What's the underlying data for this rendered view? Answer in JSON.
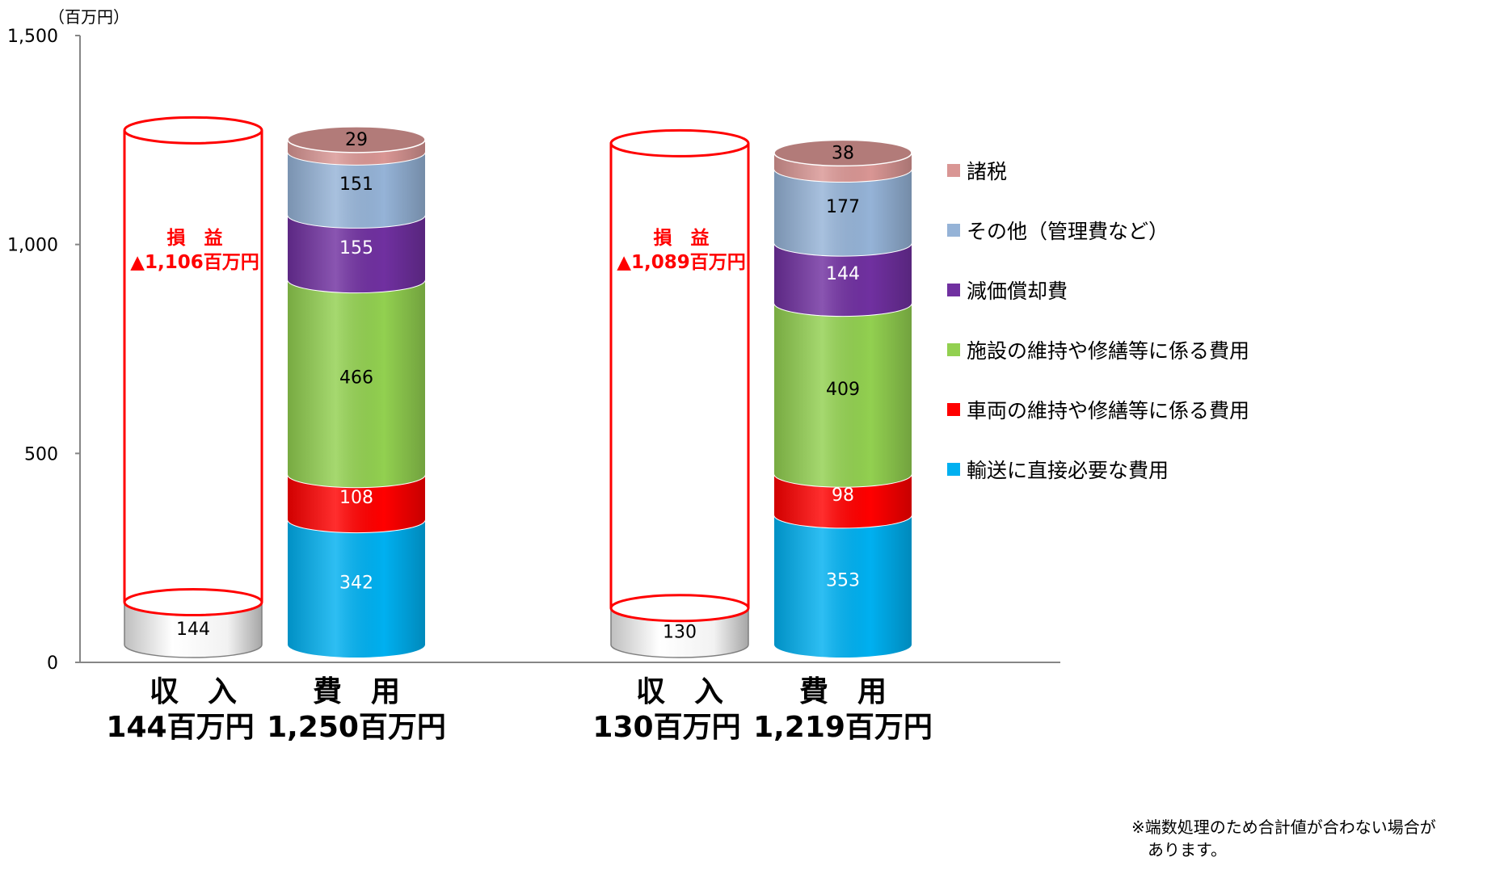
{
  "chart_data": {
    "type": "bar",
    "stacked": true,
    "style": "3d-cylinder",
    "unit_label": "（百万円）",
    "ylim": [
      0,
      1500
    ],
    "yticks": [
      {
        "value": 0,
        "label": "0"
      },
      {
        "value": 500,
        "label": "500"
      },
      {
        "value": 1000,
        "label": "1,000"
      },
      {
        "value": 1500,
        "label": "1,500"
      }
    ],
    "gridlines": false,
    "legend_position": "right",
    "series": [
      {
        "name": "輸送に直接必要な費用",
        "color": "#00b0f0",
        "values": [
          342,
          353
        ]
      },
      {
        "name": "車両の維持や修繕等に係る費用",
        "color": "#ff0000",
        "values": [
          108,
          98
        ]
      },
      {
        "name": "施設の維持や修繕等に係る費用",
        "color": "#92d050",
        "values": [
          466,
          409
        ]
      },
      {
        "name": "減価償却費",
        "color": "#7030a0",
        "values": [
          155,
          144
        ]
      },
      {
        "name": "その他（管理費など）",
        "color": "#95b3d7",
        "values": [
          151,
          177
        ]
      },
      {
        "name": "諸税",
        "color": "#d99694",
        "values": [
          29,
          38
        ]
      }
    ],
    "groups": [
      {
        "revenue": {
          "value": 144,
          "label": "144",
          "cat_line1": "収　入",
          "cat_line2": "144百万円"
        },
        "expense": {
          "cat_line1": "費　用",
          "cat_line2": "1,250百万円",
          "labels": [
            "342",
            "108",
            "466",
            "155",
            "151",
            "29"
          ]
        },
        "loss": {
          "line1": "損　益",
          "line2": "▲1,106百万円",
          "top_value": 1250
        }
      },
      {
        "revenue": {
          "value": 130,
          "label": "130",
          "cat_line1": "収　入",
          "cat_line2": "130百万円"
        },
        "expense": {
          "cat_line1": "費　用",
          "cat_line2": "1,219百万円",
          "labels": [
            "353",
            "98",
            "409",
            "144",
            "177",
            "38"
          ]
        },
        "loss": {
          "line1": "損　益",
          "line2": "▲1,089百万円",
          "top_value": 1219
        }
      }
    ],
    "colors": {
      "revenue": "#f2f2f2",
      "loss_outline": "#ff0000",
      "loss_text": "#ff0000"
    }
  },
  "footnote": "※端数処理のため合計値が合わない場合が\n　あります。"
}
